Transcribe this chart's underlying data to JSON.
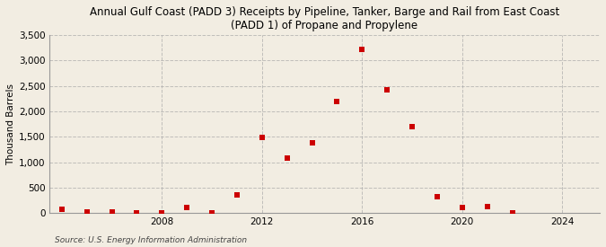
{
  "title": "Annual Gulf Coast (PADD 3) Receipts by Pipeline, Tanker, Barge and Rail from East Coast\n(PADD 1) of Propane and Propylene",
  "ylabel": "Thousand Barrels",
  "source": "Source: U.S. Energy Information Administration",
  "background_color": "#f2ede2",
  "plot_bg_color": "#f2ede2",
  "marker_color": "#cc0000",
  "marker_size": 4,
  "years": [
    2004,
    2005,
    2006,
    2007,
    2008,
    2009,
    2010,
    2011,
    2012,
    2013,
    2014,
    2015,
    2016,
    2017,
    2018,
    2019,
    2020,
    2021,
    2022
  ],
  "values": [
    70,
    20,
    30,
    10,
    10,
    110,
    10,
    360,
    1480,
    1080,
    1390,
    2190,
    3220,
    2420,
    1700,
    320,
    110,
    130,
    0
  ],
  "ylim": [
    0,
    3500
  ],
  "yticks": [
    0,
    500,
    1000,
    1500,
    2000,
    2500,
    3000,
    3500
  ],
  "xlim": [
    2003.5,
    2025.5
  ],
  "xticks": [
    2008,
    2012,
    2016,
    2020,
    2024
  ],
  "grid_color": "#aaaaaa",
  "grid_style": "--",
  "grid_alpha": 0.7,
  "title_fontsize": 8.5,
  "tick_fontsize": 7.5,
  "ylabel_fontsize": 7.5,
  "source_fontsize": 6.5
}
